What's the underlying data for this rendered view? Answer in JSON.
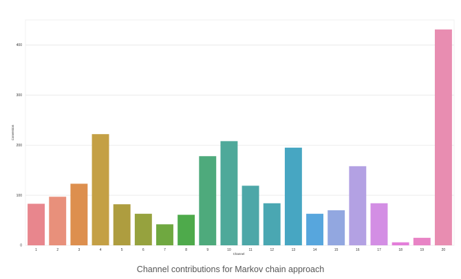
{
  "caption": "Channel contributions for Markov chain approach",
  "chart_data": {
    "type": "bar",
    "title": "",
    "xlabel": "Channel",
    "ylabel": "Conversion",
    "categories": [
      "1",
      "2",
      "3",
      "4",
      "5",
      "6",
      "7",
      "8",
      "9",
      "10",
      "11",
      "12",
      "13",
      "14",
      "15",
      "16",
      "17",
      "18",
      "19",
      "20"
    ],
    "values": [
      83,
      97,
      123,
      222,
      82,
      63,
      42,
      61,
      178,
      208,
      119,
      84,
      195,
      63,
      70,
      158,
      84,
      6,
      15,
      431
    ],
    "colors": [
      "#e8868d",
      "#e8907b",
      "#dd8f4e",
      "#c4a045",
      "#ae9d3f",
      "#96a23e",
      "#6fa840",
      "#4eaa4b",
      "#4eaa7c",
      "#4ea99a",
      "#4da7a8",
      "#4aa7b2",
      "#47a6c2",
      "#57a6dd",
      "#92a7e0",
      "#b3a1e3",
      "#d38ee4",
      "#e37ed9",
      "#e883c5",
      "#e88db1"
    ],
    "ylim": [
      0,
      450
    ],
    "yticks": [
      0,
      100,
      200,
      300,
      400
    ],
    "grid": true
  }
}
